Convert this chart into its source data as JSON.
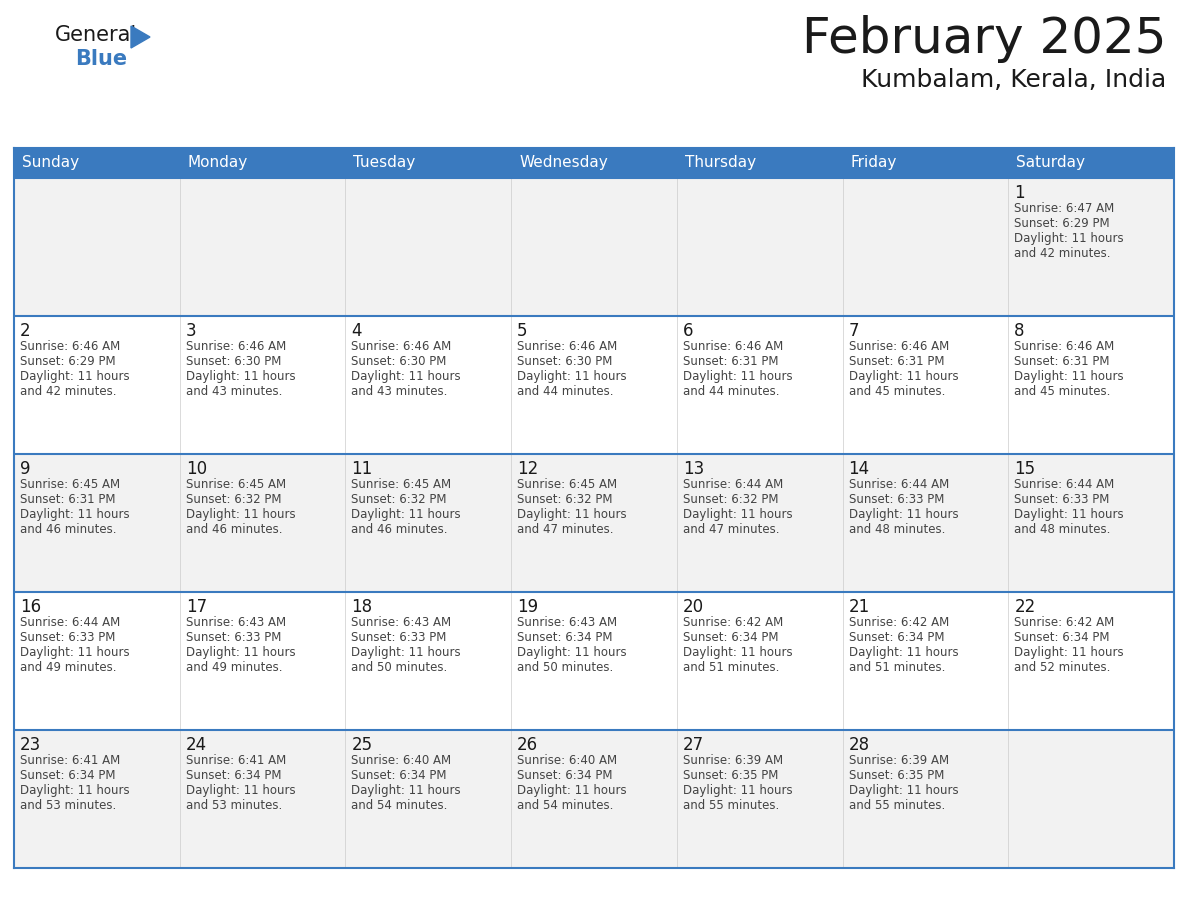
{
  "title": "February 2025",
  "subtitle": "Kumbalam, Kerala, India",
  "header_bg": "#3a7abf",
  "header_text_color": "#ffffff",
  "cell_bg": "#f2f2f2",
  "cell_bg_white": "#ffffff",
  "border_color": "#3a7abf",
  "day_headers": [
    "Sunday",
    "Monday",
    "Tuesday",
    "Wednesday",
    "Thursday",
    "Friday",
    "Saturday"
  ],
  "calendar_data": [
    [
      null,
      null,
      null,
      null,
      null,
      null,
      {
        "day": 1,
        "sunrise": "6:47 AM",
        "sunset": "6:29 PM",
        "daylight_hours": 11,
        "daylight_minutes": 42
      }
    ],
    [
      {
        "day": 2,
        "sunrise": "6:46 AM",
        "sunset": "6:29 PM",
        "daylight_hours": 11,
        "daylight_minutes": 42
      },
      {
        "day": 3,
        "sunrise": "6:46 AM",
        "sunset": "6:30 PM",
        "daylight_hours": 11,
        "daylight_minutes": 43
      },
      {
        "day": 4,
        "sunrise": "6:46 AM",
        "sunset": "6:30 PM",
        "daylight_hours": 11,
        "daylight_minutes": 43
      },
      {
        "day": 5,
        "sunrise": "6:46 AM",
        "sunset": "6:30 PM",
        "daylight_hours": 11,
        "daylight_minutes": 44
      },
      {
        "day": 6,
        "sunrise": "6:46 AM",
        "sunset": "6:31 PM",
        "daylight_hours": 11,
        "daylight_minutes": 44
      },
      {
        "day": 7,
        "sunrise": "6:46 AM",
        "sunset": "6:31 PM",
        "daylight_hours": 11,
        "daylight_minutes": 45
      },
      {
        "day": 8,
        "sunrise": "6:46 AM",
        "sunset": "6:31 PM",
        "daylight_hours": 11,
        "daylight_minutes": 45
      }
    ],
    [
      {
        "day": 9,
        "sunrise": "6:45 AM",
        "sunset": "6:31 PM",
        "daylight_hours": 11,
        "daylight_minutes": 46
      },
      {
        "day": 10,
        "sunrise": "6:45 AM",
        "sunset": "6:32 PM",
        "daylight_hours": 11,
        "daylight_minutes": 46
      },
      {
        "day": 11,
        "sunrise": "6:45 AM",
        "sunset": "6:32 PM",
        "daylight_hours": 11,
        "daylight_minutes": 46
      },
      {
        "day": 12,
        "sunrise": "6:45 AM",
        "sunset": "6:32 PM",
        "daylight_hours": 11,
        "daylight_minutes": 47
      },
      {
        "day": 13,
        "sunrise": "6:44 AM",
        "sunset": "6:32 PM",
        "daylight_hours": 11,
        "daylight_minutes": 47
      },
      {
        "day": 14,
        "sunrise": "6:44 AM",
        "sunset": "6:33 PM",
        "daylight_hours": 11,
        "daylight_minutes": 48
      },
      {
        "day": 15,
        "sunrise": "6:44 AM",
        "sunset": "6:33 PM",
        "daylight_hours": 11,
        "daylight_minutes": 48
      }
    ],
    [
      {
        "day": 16,
        "sunrise": "6:44 AM",
        "sunset": "6:33 PM",
        "daylight_hours": 11,
        "daylight_minutes": 49
      },
      {
        "day": 17,
        "sunrise": "6:43 AM",
        "sunset": "6:33 PM",
        "daylight_hours": 11,
        "daylight_minutes": 49
      },
      {
        "day": 18,
        "sunrise": "6:43 AM",
        "sunset": "6:33 PM",
        "daylight_hours": 11,
        "daylight_minutes": 50
      },
      {
        "day": 19,
        "sunrise": "6:43 AM",
        "sunset": "6:34 PM",
        "daylight_hours": 11,
        "daylight_minutes": 50
      },
      {
        "day": 20,
        "sunrise": "6:42 AM",
        "sunset": "6:34 PM",
        "daylight_hours": 11,
        "daylight_minutes": 51
      },
      {
        "day": 21,
        "sunrise": "6:42 AM",
        "sunset": "6:34 PM",
        "daylight_hours": 11,
        "daylight_minutes": 51
      },
      {
        "day": 22,
        "sunrise": "6:42 AM",
        "sunset": "6:34 PM",
        "daylight_hours": 11,
        "daylight_minutes": 52
      }
    ],
    [
      {
        "day": 23,
        "sunrise": "6:41 AM",
        "sunset": "6:34 PM",
        "daylight_hours": 11,
        "daylight_minutes": 53
      },
      {
        "day": 24,
        "sunrise": "6:41 AM",
        "sunset": "6:34 PM",
        "daylight_hours": 11,
        "daylight_minutes": 53
      },
      {
        "day": 25,
        "sunrise": "6:40 AM",
        "sunset": "6:34 PM",
        "daylight_hours": 11,
        "daylight_minutes": 54
      },
      {
        "day": 26,
        "sunrise": "6:40 AM",
        "sunset": "6:34 PM",
        "daylight_hours": 11,
        "daylight_minutes": 54
      },
      {
        "day": 27,
        "sunrise": "6:39 AM",
        "sunset": "6:35 PM",
        "daylight_hours": 11,
        "daylight_minutes": 55
      },
      {
        "day": 28,
        "sunrise": "6:39 AM",
        "sunset": "6:35 PM",
        "daylight_hours": 11,
        "daylight_minutes": 55
      },
      null
    ]
  ],
  "logo_text_general": "General",
  "logo_text_blue": "Blue",
  "logo_triangle_color": "#3a7abf",
  "text_color_dark": "#1a1a1a",
  "text_color_info": "#444444",
  "fig_width": 11.88,
  "fig_height": 9.18,
  "dpi": 100
}
